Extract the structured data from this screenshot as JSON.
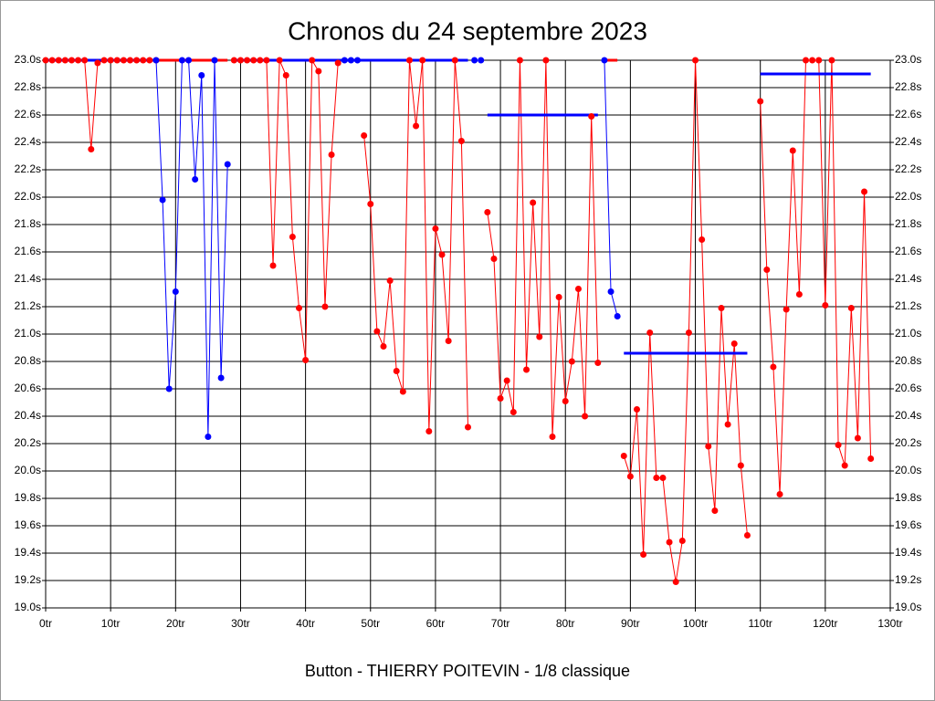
{
  "chart_data": {
    "type": "line",
    "title": "Chronos du 24 septembre 2023",
    "xlabel": "Button - THIERRY POITEVIN - 1/8 classique",
    "xlim": [
      0,
      130
    ],
    "ylim": [
      19.0,
      23.0
    ],
    "xticks": [
      {
        "value": 0,
        "label": "0tr"
      },
      {
        "value": 10,
        "label": "10tr"
      },
      {
        "value": 20,
        "label": "20tr"
      },
      {
        "value": 30,
        "label": "30tr"
      },
      {
        "value": 40,
        "label": "40tr"
      },
      {
        "value": 50,
        "label": "50tr"
      },
      {
        "value": 60,
        "label": "60tr"
      },
      {
        "value": 70,
        "label": "70tr"
      },
      {
        "value": 80,
        "label": "80tr"
      },
      {
        "value": 90,
        "label": "90tr"
      },
      {
        "value": 100,
        "label": "100tr"
      },
      {
        "value": 110,
        "label": "110tr"
      },
      {
        "value": 120,
        "label": "120tr"
      },
      {
        "value": 130,
        "label": "130tr"
      }
    ],
    "yticks": [
      {
        "value": 19.0,
        "label": "19.0s"
      },
      {
        "value": 19.2,
        "label": "19.2s"
      },
      {
        "value": 19.4,
        "label": "19.4s"
      },
      {
        "value": 19.6,
        "label": "19.6s"
      },
      {
        "value": 19.8,
        "label": "19.8s"
      },
      {
        "value": 20.0,
        "label": "20.0s"
      },
      {
        "value": 20.2,
        "label": "20.2s"
      },
      {
        "value": 20.4,
        "label": "20.4s"
      },
      {
        "value": 20.6,
        "label": "20.6s"
      },
      {
        "value": 20.8,
        "label": "20.8s"
      },
      {
        "value": 21.0,
        "label": "21.0s"
      },
      {
        "value": 21.2,
        "label": "21.2s"
      },
      {
        "value": 21.4,
        "label": "21.4s"
      },
      {
        "value": 21.6,
        "label": "21.6s"
      },
      {
        "value": 21.8,
        "label": "21.8s"
      },
      {
        "value": 22.0,
        "label": "22.0s"
      },
      {
        "value": 22.2,
        "label": "22.2s"
      },
      {
        "value": 22.4,
        "label": "22.4s"
      },
      {
        "value": 22.6,
        "label": "22.6s"
      },
      {
        "value": 22.8,
        "label": "22.8s"
      },
      {
        "value": 23.0,
        "label": "23.0s"
      }
    ],
    "grid": true,
    "average_lines": [
      {
        "x": [
          0,
          27.5
        ],
        "y": 23.0,
        "color": "#0000ff"
      },
      {
        "x": [
          17.5,
          28
        ],
        "y": 23.0,
        "color": "#ff0000"
      },
      {
        "x": [
          29,
          65
        ],
        "y": 23.0,
        "color": "#0000ff"
      },
      {
        "x": [
          68,
          85
        ],
        "y": 22.6,
        "color": "#0000ff"
      },
      {
        "x": [
          86,
          88
        ],
        "y": 23.0,
        "color": "#ff0000"
      },
      {
        "x": [
          89,
          108
        ],
        "y": 20.86,
        "color": "#0000ff"
      },
      {
        "x": [
          110,
          127
        ],
        "y": 22.9,
        "color": "#0000ff"
      }
    ],
    "series": [
      {
        "color": "#ff0000",
        "x": [
          0,
          1,
          2,
          3,
          4,
          5,
          6,
          7,
          8,
          9,
          10,
          11,
          12,
          13,
          14,
          15,
          16,
          17
        ],
        "values": [
          23.0,
          23.0,
          23.0,
          23.0,
          23.0,
          23.0,
          23.0,
          22.35,
          22.98,
          23.0,
          23.0,
          23.0,
          23.0,
          23.0,
          23.0,
          23.0,
          23.0,
          23.0
        ]
      },
      {
        "color": "#0000ff",
        "x": [
          17,
          18,
          19,
          20,
          21,
          22,
          23,
          24,
          25,
          26,
          27,
          28
        ],
        "values": [
          23.0,
          21.98,
          20.6,
          21.31,
          23.0,
          23.0,
          22.13,
          22.89,
          20.25,
          23.0,
          20.68,
          22.24
        ]
      },
      {
        "color": "#ff0000",
        "x": [
          29,
          30,
          31,
          32,
          33,
          34,
          35,
          36,
          37,
          38,
          39,
          40,
          41,
          42,
          43,
          44,
          45
        ],
        "values": [
          23.0,
          23.0,
          23.0,
          23.0,
          23.0,
          23.0,
          21.5,
          23.0,
          22.89,
          21.71,
          21.19,
          20.81,
          23.0,
          22.92,
          21.2,
          22.31,
          22.98
        ]
      },
      {
        "color": "#0000ff",
        "x": [
          46,
          47,
          48
        ],
        "values": [
          23.0,
          23.0,
          23.0
        ]
      },
      {
        "color": "#ff0000",
        "x": [
          49,
          50,
          51,
          52,
          53,
          54,
          55,
          56,
          57,
          58,
          59,
          60,
          61,
          62,
          63,
          64,
          65
        ],
        "values": [
          22.45,
          21.95,
          21.02,
          20.91,
          21.39,
          20.73,
          20.58,
          23.0,
          22.52,
          23.0,
          20.29,
          21.77,
          21.58,
          20.95,
          23.0,
          22.41,
          20.32
        ]
      },
      {
        "color": "#0000ff",
        "x": [
          66,
          67
        ],
        "values": [
          23.0,
          23.0
        ]
      },
      {
        "color": "#ff0000",
        "x": [
          68,
          69,
          70,
          71,
          72,
          73,
          74,
          75,
          76,
          77,
          78,
          79,
          80,
          81,
          82,
          83,
          84,
          85
        ],
        "values": [
          21.89,
          21.55,
          20.53,
          20.66,
          20.43,
          23.0,
          20.74,
          21.96,
          20.98,
          23.0,
          20.25,
          21.27,
          20.51,
          20.8,
          21.33,
          20.4,
          22.59,
          20.79
        ]
      },
      {
        "color": "#0000ff",
        "x": [
          86,
          87,
          88
        ],
        "values": [
          23.0,
          21.31,
          21.13
        ]
      },
      {
        "color": "#ff0000",
        "x": [
          89,
          90,
          91,
          92,
          93,
          94,
          95,
          96,
          97,
          98,
          99,
          100,
          101,
          102,
          103,
          104,
          105,
          106,
          107,
          108
        ],
        "values": [
          20.11,
          19.96,
          20.45,
          19.39,
          21.01,
          19.95,
          19.95,
          19.48,
          19.19,
          19.49,
          21.01,
          23.0,
          21.69,
          20.18,
          19.71,
          21.19,
          20.34,
          20.93,
          20.04,
          19.53
        ]
      },
      {
        "color": "#ff0000",
        "x": [
          110,
          111,
          112,
          113,
          114,
          115,
          116,
          117,
          118,
          119,
          120,
          121,
          122,
          123,
          124,
          125,
          126,
          127
        ],
        "values": [
          22.7,
          21.47,
          20.76,
          19.83,
          21.18,
          22.34,
          21.29,
          23.0,
          23.0,
          23.0,
          21.21,
          23.0,
          20.19,
          20.04,
          21.19,
          20.24,
          22.04,
          20.09
        ]
      }
    ]
  }
}
